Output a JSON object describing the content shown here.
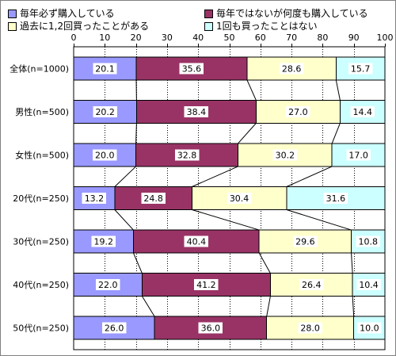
{
  "chart_data": {
    "type": "bar",
    "orientation": "horizontal",
    "stacked": "100%",
    "title": "",
    "xlabel": "",
    "ylabel": "",
    "xlim": [
      0,
      100
    ],
    "x_ticks": [
      "0",
      "10",
      "20",
      "30",
      "40",
      "50",
      "60",
      "70",
      "80",
      "90",
      "100"
    ],
    "grid": "vertical dotted",
    "legend_position": "top",
    "categories": [
      "全体(n=1000)",
      "男性(n=500)",
      "女性(n=500)",
      "20代(n=250)",
      "30代(n=250)",
      "40代(n=250)",
      "50代(n=250)"
    ],
    "series": [
      {
        "name": "毎年必ず購入している",
        "color": "#9999ff",
        "values": [
          20.1,
          20.2,
          20.0,
          13.2,
          19.2,
          22.0,
          26.0
        ]
      },
      {
        "name": "毎年ではないが何度も購入している",
        "color": "#993366",
        "values": [
          35.6,
          38.4,
          32.8,
          24.8,
          40.4,
          41.2,
          36.0
        ]
      },
      {
        "name": "過去に1,2回買ったことがある",
        "color": "#ffffcc",
        "values": [
          28.6,
          27.0,
          30.2,
          30.4,
          29.6,
          26.4,
          28.0
        ]
      },
      {
        "name": "1回も買ったことはない",
        "color": "#ccffff",
        "values": [
          15.7,
          14.4,
          17.0,
          31.6,
          10.8,
          10.4,
          10.0
        ]
      }
    ],
    "series_lines": true
  }
}
